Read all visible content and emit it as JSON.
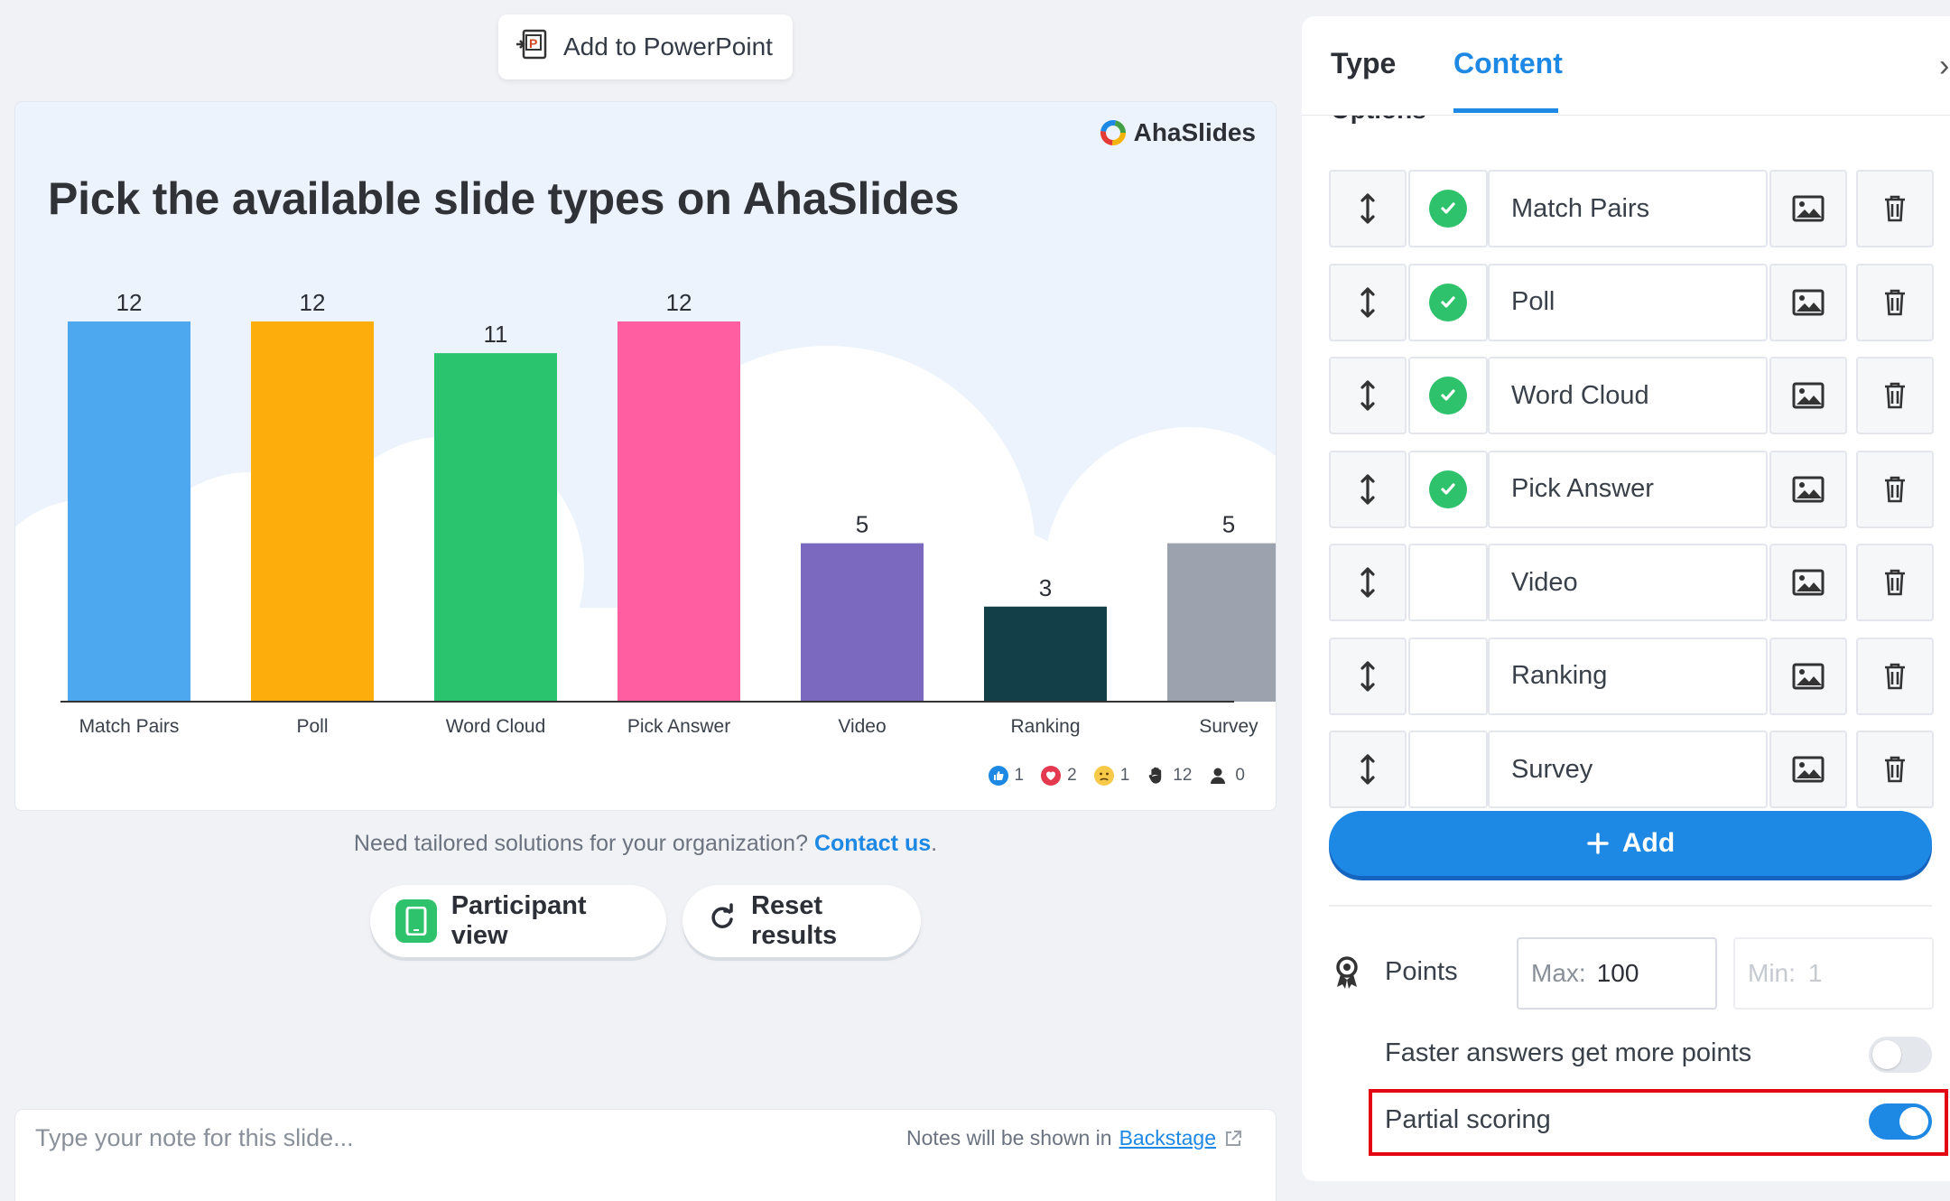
{
  "toolbar": {
    "add_to_powerpoint_label": "Add to PowerPoint"
  },
  "slide": {
    "brand": "AhaSlides",
    "title": "Pick the available slide types on AhaSlides",
    "reactions": [
      {
        "icon": "thumbs-up-icon",
        "count": "1"
      },
      {
        "icon": "heart-icon",
        "count": "2"
      },
      {
        "icon": "sad-face-icon",
        "count": "1"
      },
      {
        "icon": "raised-hand-icon",
        "count": "12"
      },
      {
        "icon": "person-icon",
        "count": "0"
      }
    ]
  },
  "chart_data": {
    "type": "bar",
    "categories": [
      "Match Pairs",
      "Poll",
      "Word Cloud",
      "Pick Answer",
      "Video",
      "Ranking",
      "Survey"
    ],
    "values": [
      12,
      12,
      11,
      12,
      5,
      3,
      5
    ],
    "colors": [
      "#4ea8f0",
      "#fdae0c",
      "#2bc46e",
      "#ff5fa0",
      "#7b68bf",
      "#133f48",
      "#9ca3ae"
    ],
    "ylim": [
      0,
      12
    ]
  },
  "footer": {
    "tailored_text": "Need tailored solutions for your organization?",
    "contact_label": "Contact us",
    "contact_suffix": ".",
    "participant_view_label": "Participant view",
    "reset_results_label": "Reset results"
  },
  "notes": {
    "placeholder": "Type your note for this slide...",
    "hint": "Notes will be shown in",
    "backstage_label": "Backstage"
  },
  "panel": {
    "tab_type": "Type",
    "tab_content": "Content",
    "options_header": "Options",
    "options": [
      {
        "label": "Match Pairs",
        "correct": true
      },
      {
        "label": "Poll",
        "correct": true
      },
      {
        "label": "Word Cloud",
        "correct": true
      },
      {
        "label": "Pick Answer",
        "correct": true
      },
      {
        "label": "Video",
        "correct": false
      },
      {
        "label": "Ranking",
        "correct": false
      },
      {
        "label": "Survey",
        "correct": false
      }
    ],
    "add_label": "Add",
    "points_label": "Points",
    "max_label": "Max:",
    "max_value": "100",
    "min_label": "Min:",
    "min_value": "1",
    "faster_answers_label": "Faster answers get more points",
    "faster_answers_on": false,
    "partial_scoring_label": "Partial scoring",
    "partial_scoring_on": true
  },
  "accent_color": "#1e88e5",
  "highlight_color": "#e30613"
}
